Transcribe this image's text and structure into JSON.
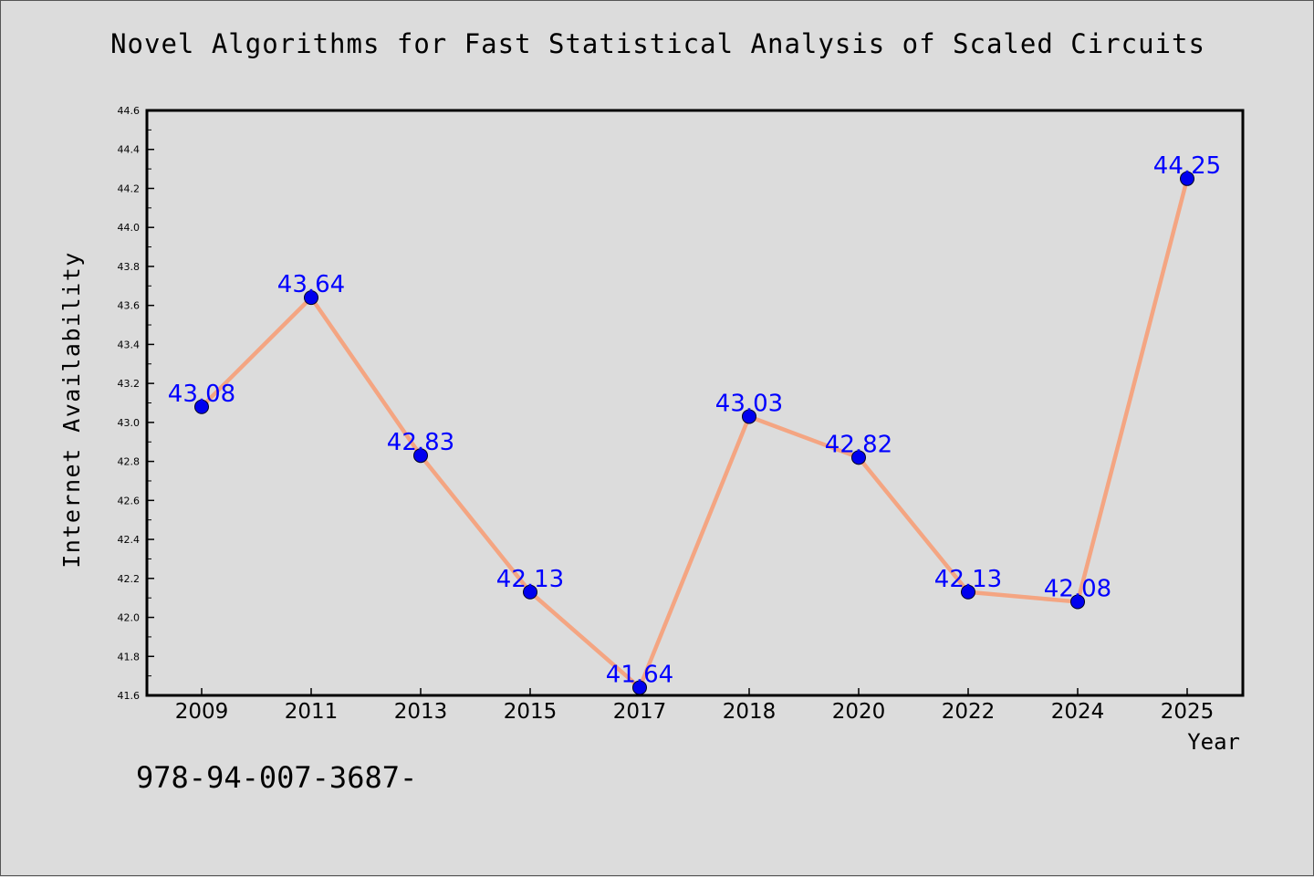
{
  "chart_data": {
    "type": "line",
    "title": "Novel Algorithms for Fast Statistical Analysis of Scaled Circuits",
    "xlabel": "Year",
    "ylabel": "Internet Availability",
    "categories": [
      "2009",
      "2011",
      "2013",
      "2015",
      "2017",
      "2018",
      "2020",
      "2022",
      "2024",
      "2025"
    ],
    "series": [
      {
        "values": [
          43.08,
          43.64,
          42.83,
          42.13,
          41.64,
          43.03,
          42.82,
          42.13,
          42.08,
          44.25
        ],
        "data_labels": [
          "43.08",
          "43.64",
          "42.83",
          "42.13",
          "41.64",
          "43.03",
          "42.82",
          "42.13",
          "42.08",
          "44.25"
        ]
      }
    ],
    "ylim": [
      41.6,
      44.6
    ],
    "yticks": [
      "41.6",
      "41.8",
      "42.0",
      "42.2",
      "42.4",
      "42.6",
      "42.8",
      "43.0",
      "43.2",
      "43.4",
      "43.6",
      "43.8",
      "44.0",
      "44.2",
      "44.4",
      "44.6"
    ],
    "grid": false,
    "line_color": "#f4a582",
    "marker_color": "#0000ee",
    "label_color": "#0000ff"
  },
  "footer": {
    "text": "978-94-007-3687-"
  }
}
